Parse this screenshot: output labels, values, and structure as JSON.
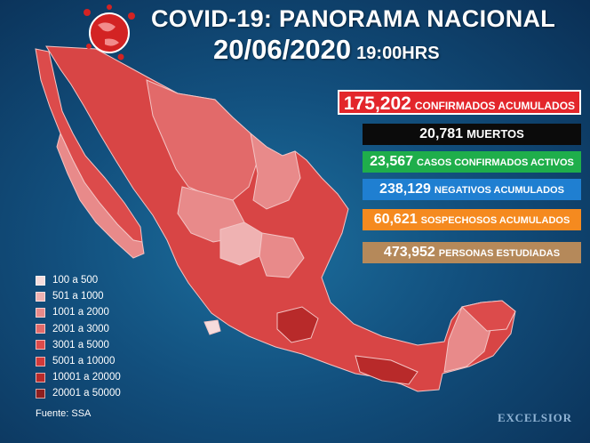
{
  "header": {
    "title": "COVID-19: PANORAMA NACIONAL",
    "date": "20/06/2020",
    "time": "19:00HRS"
  },
  "stats": [
    {
      "value": "175,202",
      "label": "CONFIRMADOS ACUMULADOS",
      "color": "#e3262b"
    },
    {
      "value": "20,781",
      "label": "MUERTOS",
      "color": "#0b0b0b"
    },
    {
      "value": "23,567",
      "label": "CASOS CONFIRMADOS ACTIVOS",
      "color": "#1fae4b"
    },
    {
      "value": "238,129",
      "label": "NEGATIVOS ACUMULADOS",
      "color": "#1f7fd1"
    },
    {
      "value": "60,621",
      "label": "SOSPECHOSOS ACUMULADOS",
      "color": "#f58a1f"
    },
    {
      "value": "473,952",
      "label": "PERSONAS ESTUDIADAS",
      "color": "#b5895a"
    }
  ],
  "legend": [
    {
      "label": "100 a 500",
      "color": "#f6dcdc"
    },
    {
      "label": "501 a 1000",
      "color": "#efb2b2"
    },
    {
      "label": "1001 a 2000",
      "color": "#e88a8a"
    },
    {
      "label": "2001 a 3000",
      "color": "#e26a6a"
    },
    {
      "label": "3001 a 5000",
      "color": "#dc4b4b"
    },
    {
      "label": "5001 a 10000",
      "color": "#d23a3a"
    },
    {
      "label": "10001 a 20000",
      "color": "#b82a2a"
    },
    {
      "label": "20001 a 50000",
      "color": "#8e1f1f"
    }
  ],
  "source": "Fuente: SSA",
  "logo": "EXCELSIOR",
  "icons": {
    "globe": "globe-virus-icon"
  }
}
